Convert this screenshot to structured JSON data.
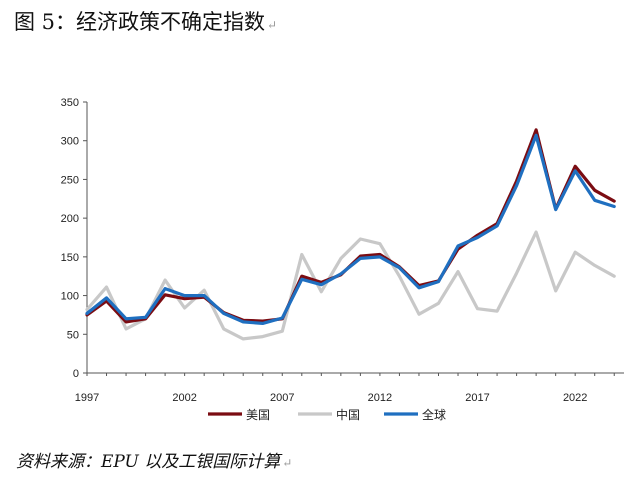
{
  "page": {
    "title": "图 5：经济政策不确定指数",
    "source": "资料来源：EPU 以及工银国际计算"
  },
  "chart_data": {
    "type": "line",
    "title": "",
    "xlabel": "",
    "ylabel": "",
    "x": [
      1997,
      1998,
      1999,
      2000,
      2001,
      2002,
      2003,
      2004,
      2005,
      2006,
      2007,
      2008,
      2009,
      2010,
      2011,
      2012,
      2013,
      2014,
      2015,
      2016,
      2017,
      2018,
      2019,
      2020,
      2021,
      2022,
      2023,
      2024
    ],
    "x_ticks": [
      1997,
      2002,
      2007,
      2012,
      2017,
      2022
    ],
    "xlim": [
      1997,
      2024.5
    ],
    "ylim": [
      0,
      350
    ],
    "y_ticks": [
      0,
      50,
      100,
      150,
      200,
      250,
      300,
      350
    ],
    "grid": false,
    "legend_position": "bottom",
    "series": [
      {
        "name": "美国",
        "color": "#7b0c12",
        "values": [
          75,
          93,
          66,
          70,
          101,
          96,
          98,
          78,
          68,
          67,
          70,
          125,
          117,
          127,
          151,
          153,
          137,
          113,
          119,
          160,
          178,
          193,
          248,
          314,
          212,
          267,
          236,
          222
        ]
      },
      {
        "name": "中国",
        "color": "#c8c8c8",
        "values": [
          82,
          111,
          57,
          70,
          120,
          84,
          107,
          57,
          44,
          47,
          54,
          153,
          105,
          148,
          173,
          167,
          125,
          76,
          90,
          131,
          83,
          80,
          129,
          182,
          106,
          156,
          139,
          125
        ]
      },
      {
        "name": "全球",
        "color": "#1f6fc0",
        "values": [
          77,
          97,
          70,
          72,
          109,
          100,
          100,
          77,
          66,
          64,
          71,
          121,
          114,
          128,
          148,
          150,
          136,
          110,
          118,
          164,
          175,
          190,
          242,
          307,
          211,
          261,
          223,
          215
        ]
      }
    ]
  }
}
